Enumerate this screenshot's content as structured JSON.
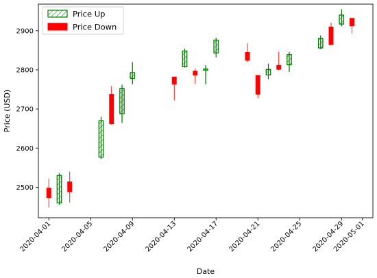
{
  "chart_data": {
    "type": "candlestick",
    "xlabel": "Date",
    "ylabel": "Price (USD)",
    "x_range": [
      "2020-03-31",
      "2020-05-02"
    ],
    "ylim": [
      2422,
      2968
    ],
    "y_ticks": [
      2500,
      2600,
      2700,
      2800,
      2900
    ],
    "x_ticks": [
      "2020-04-01",
      "2020-04-05",
      "2020-04-09",
      "2020-04-13",
      "2020-04-17",
      "2020-04-21",
      "2020-04-25",
      "2020-04-29",
      "2020-05-01"
    ],
    "grid": false,
    "legend_position": "top-left",
    "legend": [
      {
        "label": "Price Up",
        "style": "hatched",
        "color": "#008000"
      },
      {
        "label": "Price Down",
        "style": "filled",
        "color": "#ff0000"
      }
    ],
    "colors": {
      "up": "#008000",
      "down": "#ff0000"
    },
    "candles": [
      {
        "date": "2020-04-01",
        "open": 2498,
        "close": 2473,
        "high": 2522,
        "low": 2448
      },
      {
        "date": "2020-04-02",
        "open": 2460,
        "close": 2530,
        "high": 2536,
        "low": 2455
      },
      {
        "date": "2020-04-03",
        "open": 2514,
        "close": 2488,
        "high": 2540,
        "low": 2461
      },
      {
        "date": "2020-04-06",
        "open": 2577,
        "close": 2670,
        "high": 2680,
        "low": 2572
      },
      {
        "date": "2020-04-07",
        "open": 2738,
        "close": 2662,
        "high": 2758,
        "low": 2660
      },
      {
        "date": "2020-04-08",
        "open": 2688,
        "close": 2752,
        "high": 2762,
        "low": 2664
      },
      {
        "date": "2020-04-09",
        "open": 2778,
        "close": 2793,
        "high": 2820,
        "low": 2763
      },
      {
        "date": "2020-04-13",
        "open": 2782,
        "close": 2763,
        "high": 2782,
        "low": 2722
      },
      {
        "date": "2020-04-14",
        "open": 2808,
        "close": 2848,
        "high": 2854,
        "low": 2806
      },
      {
        "date": "2020-04-15",
        "open": 2797,
        "close": 2786,
        "high": 2803,
        "low": 2764
      },
      {
        "date": "2020-04-16",
        "open": 2799,
        "close": 2802,
        "high": 2812,
        "low": 2763
      },
      {
        "date": "2020-04-17",
        "open": 2843,
        "close": 2876,
        "high": 2882,
        "low": 2832
      },
      {
        "date": "2020-04-20",
        "open": 2845,
        "close": 2824,
        "high": 2868,
        "low": 2820
      },
      {
        "date": "2020-04-21",
        "open": 2786,
        "close": 2737,
        "high": 2786,
        "low": 2728
      },
      {
        "date": "2020-04-22",
        "open": 2787,
        "close": 2801,
        "high": 2816,
        "low": 2776
      },
      {
        "date": "2020-04-23",
        "open": 2812,
        "close": 2801,
        "high": 2846,
        "low": 2799
      },
      {
        "date": "2020-04-24",
        "open": 2813,
        "close": 2839,
        "high": 2846,
        "low": 2795
      },
      {
        "date": "2020-04-27",
        "open": 2856,
        "close": 2880,
        "high": 2888,
        "low": 2853
      },
      {
        "date": "2020-04-28",
        "open": 2910,
        "close": 2864,
        "high": 2920,
        "low": 2862
      },
      {
        "date": "2020-04-29",
        "open": 2917,
        "close": 2940,
        "high": 2955,
        "low": 2911
      },
      {
        "date": "2020-04-30",
        "open": 2932,
        "close": 2912,
        "high": 2932,
        "low": 2893
      }
    ]
  }
}
